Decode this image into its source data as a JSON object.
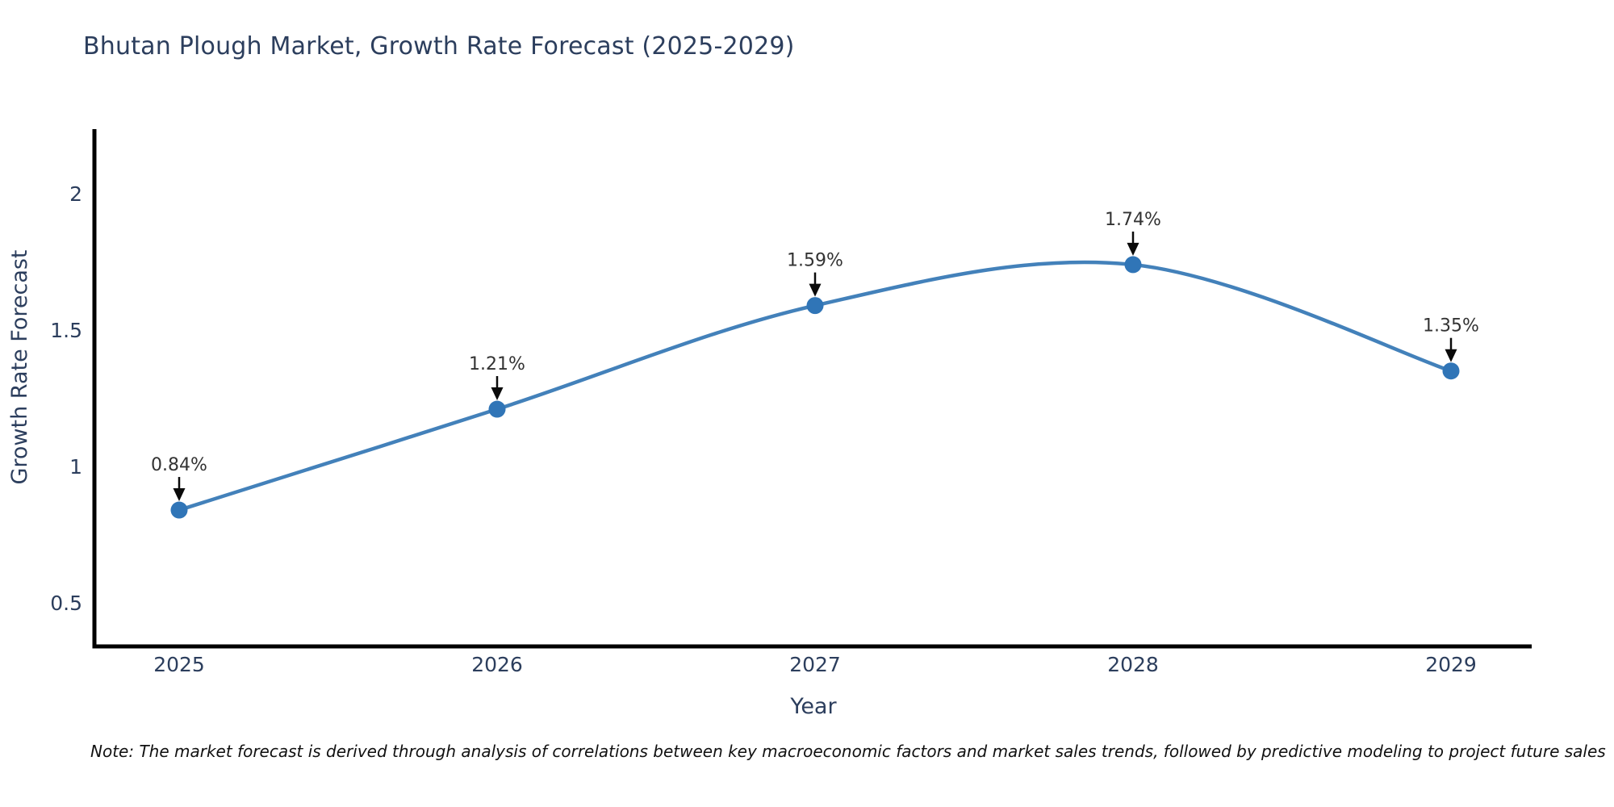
{
  "chart_data": {
    "type": "line",
    "title": "Bhutan Plough Market, Growth Rate Forecast (2025-2029)",
    "xlabel": "Year",
    "ylabel": "Growth Rate Forecast",
    "x": [
      2025,
      2026,
      2027,
      2028,
      2029
    ],
    "series": [
      {
        "name": "Growth Rate Forecast",
        "values": [
          0.84,
          1.21,
          1.59,
          1.74,
          1.35
        ],
        "point_labels": [
          "0.84%",
          "1.21%",
          "1.59%",
          "1.74%",
          "1.35%"
        ]
      }
    ],
    "xtick_labels": [
      "2025",
      "2026",
      "2027",
      "2028",
      "2029"
    ],
    "ytick_values": [
      0.5,
      1,
      1.5,
      2
    ],
    "ytick_labels": [
      "0.5",
      "1",
      "1.5",
      "2"
    ],
    "xlim": [
      2024.7335,
      2029.2538
    ],
    "ylim": [
      0.34,
      2.237
    ],
    "grid": false,
    "legend_position": "none",
    "annotation_style": "down-arrow-to-point",
    "colors": {
      "background": "#ffffff",
      "line": "#4381ba",
      "marker": "#3075b7",
      "axis": "#000000",
      "arrow": "#0a0a0a",
      "title_text": "#2c3e5d",
      "tick_text": "#2c3e5d",
      "axis_label_text": "#2c3e5d",
      "point_label_text": "#333333",
      "note_text": "#111111"
    },
    "note": "Note: The market forecast is derived through analysis of correlations between key macroeconomic factors and market sales trends, followed by predictive modeling to project future sales"
  }
}
